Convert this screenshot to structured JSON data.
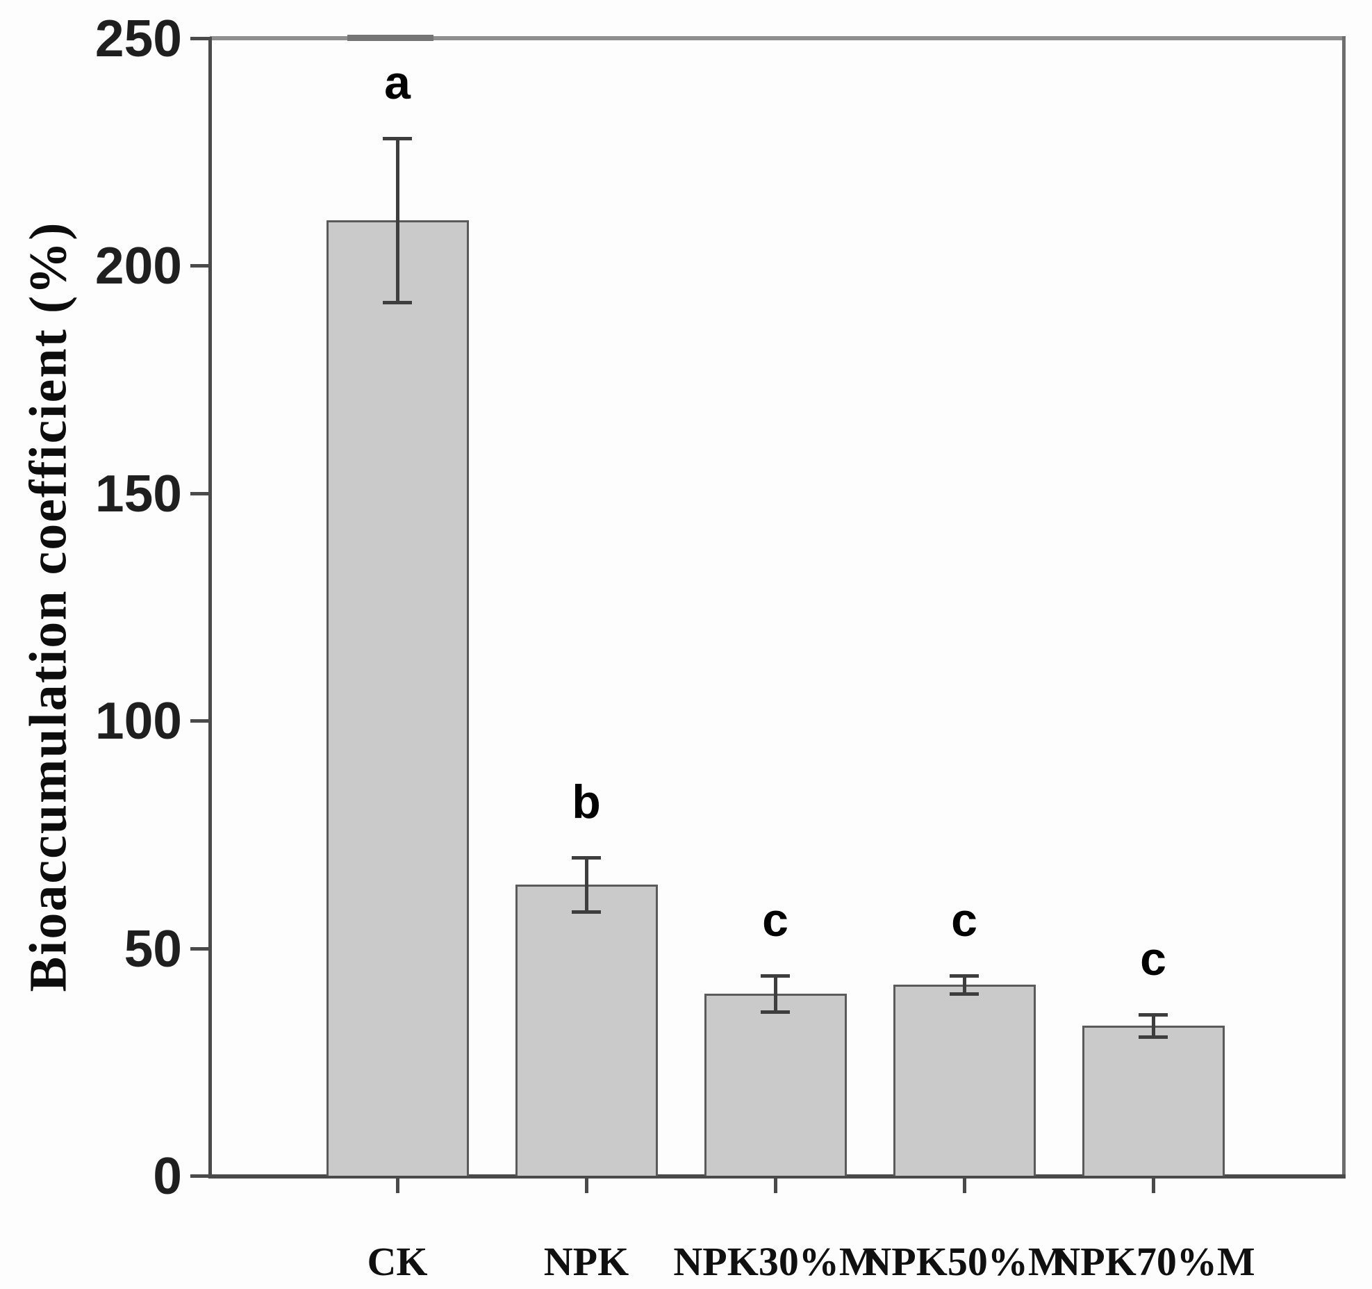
{
  "chart_data": {
    "type": "bar",
    "title": "",
    "xlabel": "",
    "ylabel": "Bioaccumulation coefficient (%)",
    "ylim": [
      0,
      250
    ],
    "yticks": [
      0,
      50,
      100,
      150,
      200,
      250
    ],
    "grid": false,
    "legend": null,
    "categories": [
      "CK",
      "NPK",
      "NPK30%M",
      "NPK50%M",
      "NPK70%M"
    ],
    "values": [
      210,
      64,
      40,
      42,
      33
    ],
    "errors": [
      18,
      6,
      4,
      2,
      2.5
    ],
    "sig_letters": [
      "a",
      "b",
      "c",
      "c",
      "c"
    ],
    "colors": {
      "bar_fill": "#cacaca",
      "bar_stroke": "#5a5a5a",
      "axis": "#4a4a4a",
      "error_bar": "#3e3e3e",
      "text": "#0d0d0d",
      "background": "#fdfdfd"
    }
  }
}
